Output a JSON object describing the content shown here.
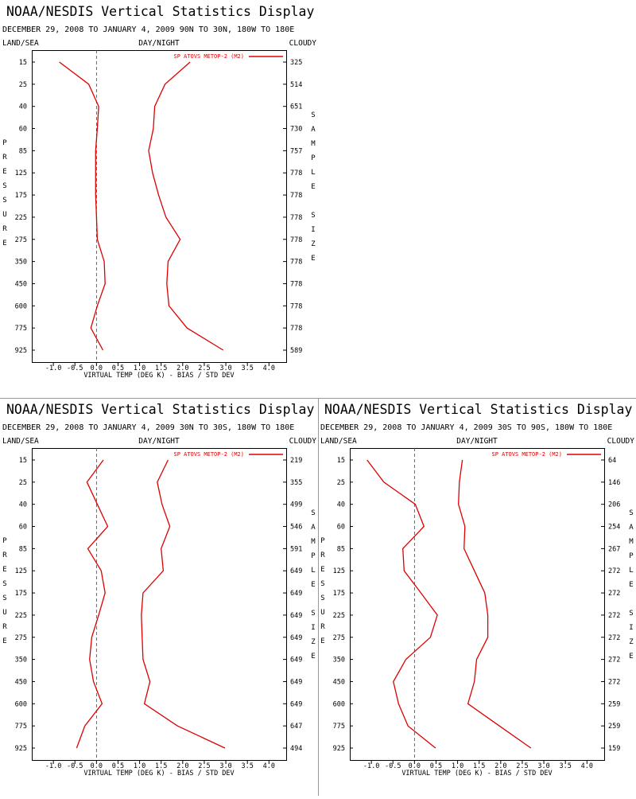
{
  "chart_data": [
    {
      "type": "line",
      "title": "NOAA/NESDIS Vertical Statistics Display",
      "subtitle": "DECEMBER 29, 2008 TO JANUARY 4, 2009 90N TO 30N, 180W TO 180E",
      "left_header": "LAND/SEA",
      "center_header": "DAY/NIGHT",
      "right_header": "CLOUDY",
      "y_axis_label": "PRESSURE",
      "y2_axis_label": "SAMPLE SIZE",
      "x_axis_label": "VIRTUAL TEMP (DEG K) - BIAS / STD DEV",
      "categories": [
        15,
        25,
        40,
        60,
        85,
        125,
        175,
        225,
        275,
        350,
        450,
        600,
        775,
        925
      ],
      "sample_size": [
        325,
        514,
        651,
        730,
        757,
        778,
        778,
        778,
        778,
        778,
        778,
        778,
        778,
        589
      ],
      "series": [
        {
          "name": "SP ATOVS METOP-2 (M2)",
          "color": "#dd0000",
          "bias": [
            -0.86,
            -0.18,
            0.05,
            0.02,
            -0.02,
            -0.02,
            -0.02,
            0.0,
            0.02,
            0.18,
            0.2,
            0.02,
            -0.13,
            0.15
          ],
          "std_dev": [
            2.17,
            1.59,
            1.35,
            1.32,
            1.21,
            1.3,
            1.44,
            1.61,
            1.94,
            1.66,
            1.63,
            1.68,
            2.1,
            2.94
          ]
        }
      ],
      "xlim": [
        -1.5,
        4.4
      ],
      "xticks": [
        {
          "value": -1,
          "label": "-1.0"
        },
        -0.5,
        {
          "value": 0,
          "label": "0.0"
        },
        0.5,
        {
          "value": 1,
          "label": "1.0"
        },
        1.5,
        {
          "value": 2,
          "label": "2.0"
        },
        2.5,
        {
          "value": 3,
          "label": "3.0"
        },
        3.5,
        {
          "value": 4,
          "label": "4.0"
        }
      ]
    },
    {
      "type": "line",
      "title": "NOAA/NESDIS Vertical Statistics Display",
      "subtitle": "DECEMBER 29, 2008 TO JANUARY 4, 2009 30N TO 30S, 180W TO 180E",
      "left_header": "LAND/SEA",
      "center_header": "DAY/NIGHT",
      "right_header": "CLOUDY",
      "y_axis_label": "PRESSURE",
      "y2_axis_label": "SAMPLE SIZE",
      "x_axis_label": "VIRTUAL TEMP (DEG K) - BIAS / STD DEV",
      "categories": [
        15,
        25,
        40,
        60,
        85,
        125,
        175,
        225,
        275,
        350,
        450,
        600,
        775,
        925
      ],
      "sample_size": [
        219,
        355,
        499,
        546,
        591,
        649,
        649,
        649,
        649,
        649,
        649,
        649,
        647,
        494
      ],
      "series": [
        {
          "name": "SP ATOVS METOP-2 (M2)",
          "color": "#dd0000",
          "bias": [
            0.16,
            -0.22,
            0.02,
            0.26,
            -0.2,
            0.11,
            0.2,
            0.05,
            -0.11,
            -0.16,
            -0.07,
            0.13,
            -0.27,
            -0.46
          ],
          "std_dev": [
            1.66,
            1.41,
            1.52,
            1.7,
            1.5,
            1.55,
            1.08,
            1.04,
            1.06,
            1.08,
            1.24,
            1.11,
            1.88,
            2.98
          ]
        }
      ],
      "xlim": [
        -1.5,
        4.4
      ],
      "xticks": [
        {
          "value": -1,
          "label": "-1.0"
        },
        -0.5,
        {
          "value": 0,
          "label": "0.0"
        },
        0.5,
        {
          "value": 1,
          "label": "1.0"
        },
        1.5,
        {
          "value": 2,
          "label": "2.0"
        },
        2.5,
        {
          "value": 3,
          "label": "3.0"
        },
        3.5,
        {
          "value": 4,
          "label": "4.0"
        }
      ]
    },
    {
      "type": "line",
      "title": "NOAA/NESDIS Vertical Statistics Display",
      "subtitle": "DECEMBER 29, 2008 TO JANUARY 4, 2009 30S TO 90S, 180W TO 180E",
      "left_header": "LAND/SEA",
      "center_header": "DAY/NIGHT",
      "right_header": "CLOUDY",
      "y_axis_label": "PRESSURE",
      "y2_axis_label": "SAMPLE SIZE",
      "x_axis_label": "VIRTUAL TEMP (DEG K) - BIAS / STD DEV",
      "categories": [
        15,
        25,
        40,
        60,
        85,
        125,
        175,
        225,
        275,
        350,
        450,
        600,
        775,
        925
      ],
      "sample_size": [
        64,
        146,
        206,
        254,
        267,
        272,
        272,
        272,
        272,
        272,
        272,
        259,
        259,
        159
      ],
      "series": [
        {
          "name": "SP ATOVS METOP-2 (M2)",
          "color": "#dd0000",
          "bias": [
            -1.1,
            -0.71,
            0.02,
            0.22,
            -0.27,
            -0.24,
            0.15,
            0.53,
            0.37,
            -0.2,
            -0.49,
            -0.37,
            -0.15,
            0.49
          ],
          "std_dev": [
            1.11,
            1.04,
            1.02,
            1.17,
            1.15,
            1.39,
            1.63,
            1.7,
            1.7,
            1.44,
            1.39,
            1.24,
            1.97,
            2.7
          ]
        }
      ],
      "xlim": [
        -1.5,
        4.4
      ],
      "xticks": [
        {
          "value": -1,
          "label": "-1.0"
        },
        -0.5,
        {
          "value": 0,
          "label": "0.0"
        },
        0.5,
        {
          "value": 1,
          "label": "1.0"
        },
        1.5,
        {
          "value": 2,
          "label": "2.0"
        },
        2.5,
        {
          "value": 3,
          "label": "3.0"
        },
        3.5,
        {
          "value": 4,
          "label": "4.0"
        }
      ]
    }
  ]
}
